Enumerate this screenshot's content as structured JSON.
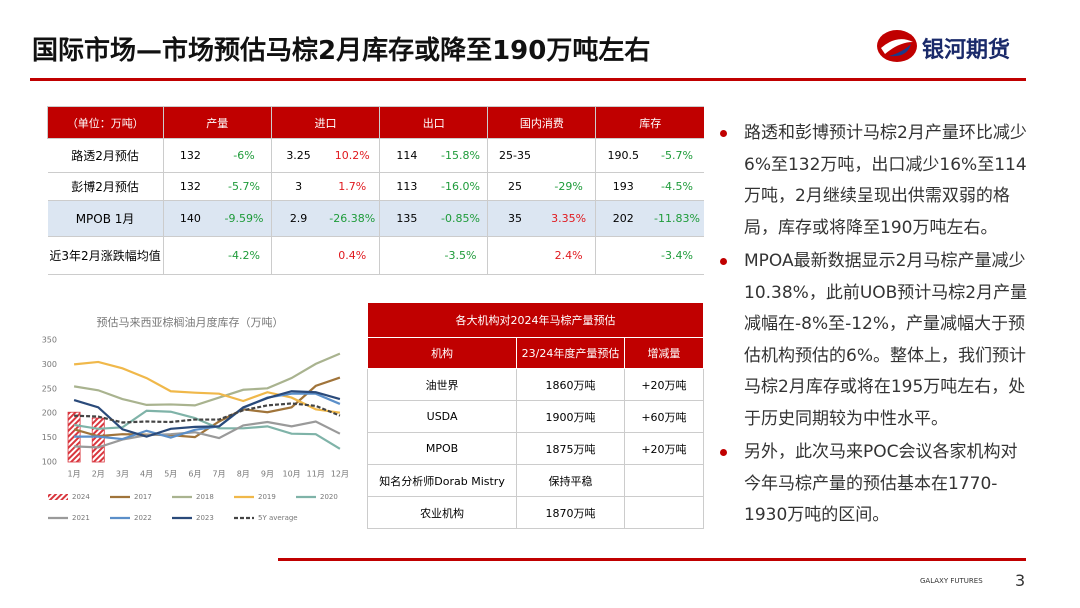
{
  "header": {
    "title": "国际市场—市场预估马棕2月库存或降至190万吨左右",
    "logo": "银河期货"
  },
  "table": {
    "columns": [
      "（单位：万吨）",
      "产量",
      "进口",
      "出口",
      "国内消费",
      "库存"
    ],
    "rows": [
      [
        "路透2月预估",
        "132",
        "-6%",
        "3.25",
        "10.2%",
        "114",
        "-15.8%",
        "25-35",
        null,
        "190.5",
        "-5.7%"
      ],
      [
        "彭博2月预估",
        "132",
        "-5.7%",
        "3",
        "1.7%",
        "113",
        "-16.0%",
        "25",
        "-29%",
        "193",
        "-4.5%"
      ],
      [
        "MPOB 1月",
        "140",
        "-9.59%",
        "2.9",
        "-26.38%",
        "135",
        "-0.85%",
        "35",
        "3.35%",
        "202",
        "-11.83%"
      ],
      [
        "近3年2月涨跌幅均值",
        null,
        "-4.2%",
        null,
        "0.4%",
        null,
        "-3.5%",
        null,
        "2.4%",
        null,
        "-3.4%"
      ]
    ]
  },
  "chart_data": {
    "type": "line",
    "title": "预估马来西亚棕榈油月度库存（万吨）",
    "categories": [
      "1月",
      "2月",
      "3月",
      "4月",
      "5月",
      "6月",
      "7月",
      "8月",
      "9月",
      "10月",
      "11月",
      "12月"
    ],
    "ylim": [
      100,
      350
    ],
    "yticks": [
      100,
      150,
      200,
      250,
      300,
      350
    ],
    "series": [
      {
        "name": "2024",
        "type": "bar",
        "color": "#d9363e",
        "values": [
          202,
          190,
          null,
          null,
          null,
          null,
          null,
          null,
          null,
          null,
          null,
          null
        ]
      },
      {
        "name": "2017",
        "color": "#a0743a",
        "values": [
          167,
          153,
          157,
          156,
          155,
          151,
          183,
          208,
          202,
          212,
          256,
          273
        ]
      },
      {
        "name": "2018",
        "color": "#a9b38f",
        "values": [
          255,
          247,
          229,
          217,
          218,
          216,
          232,
          248,
          251,
          272,
          301,
          322
        ]
      },
      {
        "name": "2019",
        "color": "#f0b84a",
        "values": [
          300,
          305,
          292,
          272,
          245,
          242,
          240,
          225,
          243,
          232,
          208,
          201
        ]
      },
      {
        "name": "2020",
        "color": "#7fb3a8",
        "values": [
          176,
          168,
          171,
          205,
          203,
          190,
          169,
          169,
          173,
          158,
          157,
          127
        ]
      },
      {
        "name": "2021",
        "color": "#9a9a9a",
        "values": [
          132,
          130,
          146,
          155,
          157,
          161,
          149,
          175,
          182,
          173,
          183,
          158
        ]
      },
      {
        "name": "2022",
        "color": "#5b8fc9",
        "values": [
          152,
          152,
          147,
          164,
          150,
          166,
          173,
          211,
          232,
          240,
          240,
          219
        ]
      },
      {
        "name": "2023",
        "color": "#2a4a7a",
        "values": [
          227,
          212,
          167,
          152,
          168,
          172,
          173,
          212,
          231,
          245,
          243,
          229
        ]
      },
      {
        "name": "5Y average",
        "color": "#444444",
        "dashed": true,
        "values": [
          195,
          193,
          181,
          183,
          182,
          187,
          187,
          206,
          216,
          220,
          215,
          195
        ]
      }
    ]
  },
  "institutions": {
    "title": "各大机构对2024年马棕产量预估",
    "columns": [
      "机构",
      "23/24年度产量预估",
      "增减量"
    ],
    "rows": [
      [
        "油世界",
        "1860万吨",
        "+20万吨"
      ],
      [
        "USDA",
        "1900万吨",
        "+60万吨"
      ],
      [
        "MPOB",
        "1875万吨",
        "+20万吨"
      ],
      [
        "知名分析师Dorab Mistry",
        "保持平稳",
        null
      ],
      [
        "农业机构",
        "1870万吨",
        null
      ]
    ]
  },
  "bullets": [
    "路透和彭博预计马棕2月产量环比减少6%至132万吨，出口减少16%至114万吨，2月继续呈现出供需双弱的格局，库存或将降至190万吨左右。",
    "MPOA最新数据显示2月马棕产量减少10.38%，此前UOB预计马棕2月产量减幅在-8%至-12%，产量减幅大于预估机构预估的6%。整体上，我们预计马棕2月库存或将在195万吨左右，处于历史同期较为中性水平。",
    "另外，此次马来POC会议各家机构对今年马棕产量的预估基本在1770-1930万吨的区间。"
  ],
  "footer": {
    "brand": "GALAXY FUTURES",
    "page": "3"
  }
}
